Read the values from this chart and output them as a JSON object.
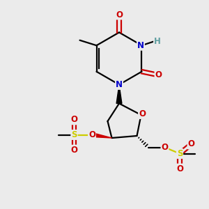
{
  "bg_color": "#ebebeb",
  "bond_color": "#000000",
  "N_color": "#0000cc",
  "O_color": "#cc0000",
  "S_color": "#cccc00",
  "H_color": "#5f9ea0",
  "C_color": "#000000",
  "figsize": [
    3.0,
    3.0
  ],
  "dpi": 100,
  "xlim": [
    0,
    10
  ],
  "ylim": [
    0,
    10
  ]
}
